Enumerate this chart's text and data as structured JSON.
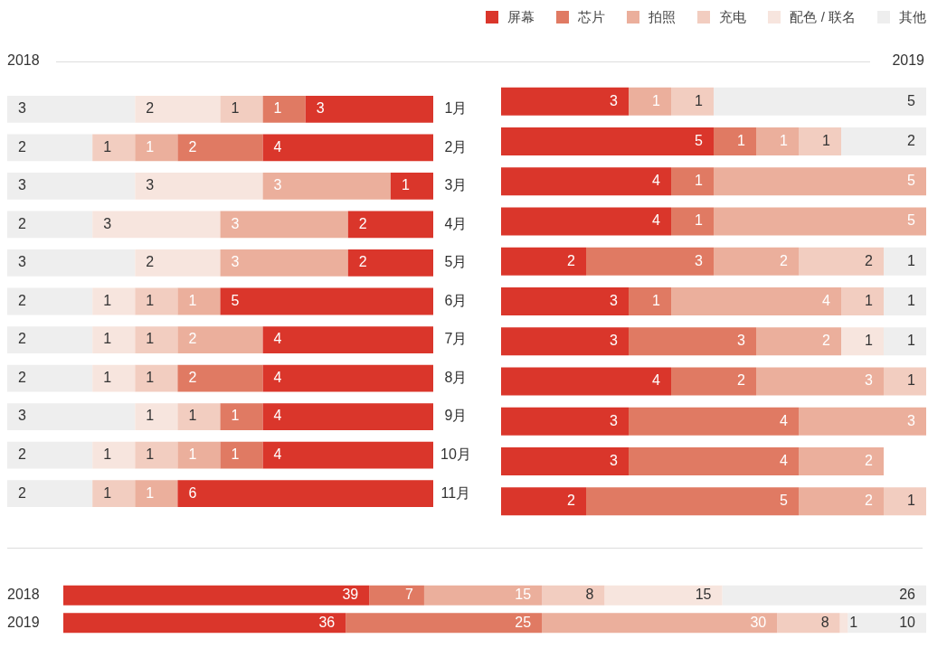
{
  "chart_data": [
    {
      "type": "bar",
      "orientation": "horizontal",
      "stacked": true,
      "title": "2018",
      "categories": [
        "1月",
        "2月",
        "3月",
        "4月",
        "5月",
        "6月",
        "7月",
        "8月",
        "9月",
        "10月",
        "11月"
      ],
      "xlim": [
        10,
        0
      ],
      "tick_labels": "y",
      "data_labels": true,
      "series": [
        {
          "color": "#da362b",
          "values": [
            3,
            4,
            1,
            2,
            2,
            5,
            4,
            4,
            4,
            4,
            6
          ]
        },
        {
          "color": "#e07a63",
          "values": [
            1,
            2,
            null,
            null,
            null,
            null,
            null,
            2,
            1,
            1,
            null
          ]
        },
        {
          "color": "#ebaf9c",
          "values": [
            null,
            1,
            3,
            3,
            3,
            1,
            2,
            null,
            null,
            1,
            1
          ]
        },
        {
          "color": "#f2cdc0",
          "values": [
            1,
            1,
            null,
            null,
            null,
            1,
            1,
            1,
            1,
            1,
            1
          ]
        },
        {
          "color": "#f7e5de",
          "values": [
            2,
            null,
            3,
            3,
            2,
            1,
            1,
            1,
            1,
            1,
            null
          ]
        },
        {
          "color": "#eeeeee",
          "values": [
            3,
            2,
            3,
            2,
            3,
            2,
            2,
            2,
            3,
            2,
            2
          ]
        }
      ]
    },
    {
      "type": "bar",
      "orientation": "horizontal",
      "stacked": true,
      "title": "2019",
      "categories": [
        null,
        null,
        null,
        null,
        null,
        null,
        null,
        null,
        null,
        null,
        null
      ],
      "xlim": [
        0,
        10
      ],
      "tick_labels": false,
      "data_labels": true,
      "legend": "top right",
      "series": [
        {
          "name": "屏幕",
          "color": "#da362b",
          "values": [
            3,
            5,
            4,
            4,
            2,
            3,
            3,
            4,
            3,
            3,
            2
          ]
        },
        {
          "name": "芯片",
          "color": "#e07a63",
          "values": [
            null,
            1,
            1,
            1,
            3,
            1,
            3,
            2,
            4,
            4,
            5
          ]
        },
        {
          "name": "拍照",
          "color": "#ebaf9c",
          "values": [
            1,
            1,
            5,
            5,
            2,
            4,
            2,
            3,
            3,
            2,
            2
          ]
        },
        {
          "name": "充电",
          "color": "#f2cdc0",
          "values": [
            1,
            1,
            null,
            null,
            2,
            1,
            null,
            1,
            null,
            null,
            1
          ]
        },
        {
          "name": "配色 / 联名",
          "color": "#f7e5de",
          "values": [
            null,
            null,
            null,
            null,
            null,
            null,
            1,
            null,
            null,
            null,
            null
          ]
        },
        {
          "name": "其他",
          "color": "#eeeeee",
          "values": [
            5,
            2,
            null,
            null,
            1,
            1,
            1,
            null,
            null,
            null,
            null
          ]
        }
      ]
    },
    {
      "type": "bar",
      "orientation": "horizontal",
      "stacked": true,
      "categories": [
        "2018",
        "2019"
      ],
      "xlim": [
        0,
        110
      ],
      "tick_labels": "y",
      "data_labels": true,
      "series": [
        {
          "color": "#da362b",
          "values": [
            39,
            36
          ]
        },
        {
          "color": "#e07a63",
          "values": [
            7,
            25
          ]
        },
        {
          "color": "#ebaf9c",
          "values": [
            15,
            30
          ]
        },
        {
          "color": "#f2cdc0",
          "values": [
            8,
            8
          ]
        },
        {
          "color": "#f7e5de",
          "values": [
            15,
            1
          ]
        },
        {
          "color": "#eeeeee",
          "values": [
            26,
            10
          ]
        }
      ]
    }
  ]
}
